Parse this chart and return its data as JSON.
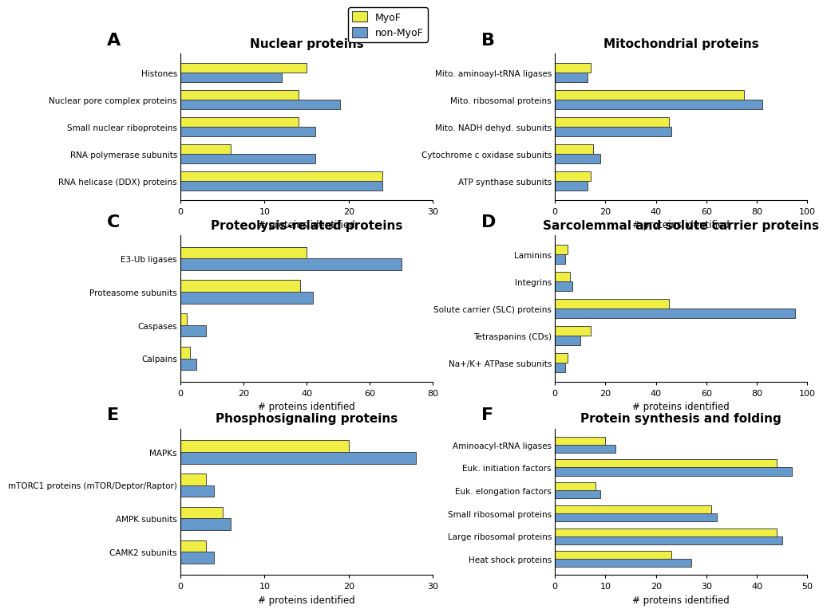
{
  "panels": {
    "A": {
      "title": "Nuclear proteins",
      "categories": [
        "Histones",
        "Nuclear pore complex proteins",
        "Small nuclear riboproteins",
        "RNA polymerase subunits",
        "RNA helicase (DDX) proteins"
      ],
      "myof": [
        15,
        14,
        14,
        6,
        24
      ],
      "non_myof": [
        12,
        19,
        16,
        16,
        24
      ],
      "xlim": [
        0,
        30
      ],
      "xticks": [
        0,
        10,
        20,
        30
      ]
    },
    "B": {
      "title": "Mitochondrial proteins",
      "categories": [
        "Mito. aminoayl-tRNA ligases",
        "Mito. ribosomal proteins",
        "Mito. NADH dehyd. subunits",
        "Cytochrome c oxidase subunits",
        "ATP synthase subunits"
      ],
      "myof": [
        14,
        75,
        45,
        15,
        14
      ],
      "non_myof": [
        13,
        82,
        46,
        18,
        13
      ],
      "xlim": [
        0,
        100
      ],
      "xticks": [
        0,
        20,
        40,
        60,
        80,
        100
      ]
    },
    "C": {
      "title": "Proteolysis-related proteins",
      "categories": [
        "E3-Ub ligases",
        "Proteasome subunits",
        "Caspases",
        "Calpains"
      ],
      "myof": [
        40,
        38,
        2,
        3
      ],
      "non_myof": [
        70,
        42,
        8,
        5
      ],
      "xlim": [
        0,
        80
      ],
      "xticks": [
        0,
        20,
        40,
        60,
        80
      ]
    },
    "D": {
      "title": "Sarcolemmal and solute carrier proteins",
      "categories": [
        "Laminins",
        "Integrins",
        "Solute carrier (SLC) proteins",
        "Tetraspanins (CDs)",
        "Na+/K+ ATPase subunits"
      ],
      "myof": [
        5,
        6,
        45,
        14,
        5
      ],
      "non_myof": [
        4,
        7,
        95,
        10,
        4
      ],
      "xlim": [
        0,
        100
      ],
      "xticks": [
        0,
        20,
        40,
        60,
        80,
        100
      ]
    },
    "E": {
      "title": "Phosphosignaling proteins",
      "categories": [
        "MAPKs",
        "mTORC1 proteins (mTOR/Deptor/Raptor)",
        "AMPK subunits",
        "CAMK2 subunits"
      ],
      "myof": [
        20,
        3,
        5,
        3
      ],
      "non_myof": [
        28,
        4,
        6,
        4
      ],
      "xlim": [
        0,
        30
      ],
      "xticks": [
        0,
        10,
        20,
        30
      ]
    },
    "F": {
      "title": "Protein synthesis and folding",
      "categories": [
        "Aminoacyl-tRNA ligases",
        "Euk. initiation factors",
        "Euk. elongation factors",
        "Small ribosomal proteins",
        "Large ribosomal proteins",
        "Heat shock proteins"
      ],
      "myof": [
        10,
        44,
        8,
        31,
        44,
        23
      ],
      "non_myof": [
        12,
        47,
        9,
        32,
        45,
        27
      ],
      "xlim": [
        0,
        50
      ],
      "xticks": [
        0,
        10,
        20,
        30,
        40,
        50
      ]
    }
  },
  "myof_color": "#eeee44",
  "non_myof_color": "#6699cc",
  "bar_edge_color": "#444444",
  "xlabel": "# proteins identified",
  "legend_myof": "MyoF",
  "legend_non_myof": "non-MyoF"
}
